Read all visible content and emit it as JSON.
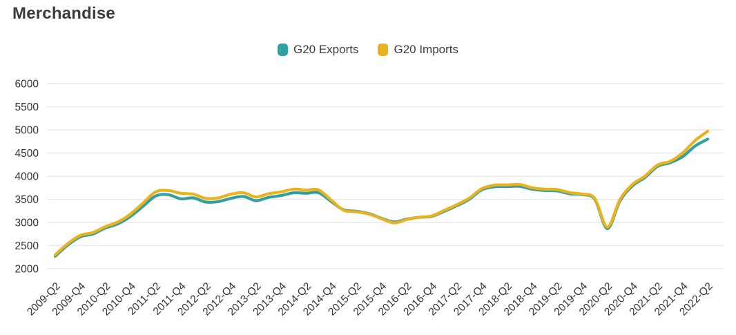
{
  "header": {
    "title": "Merchandise"
  },
  "legend": {
    "items": [
      {
        "label": "G20 Exports",
        "color": "#339f9f"
      },
      {
        "label": "G20 Imports",
        "color": "#e9b31d"
      }
    ]
  },
  "chart_data": {
    "type": "line",
    "title": "Merchandise",
    "categories": [
      "2009-Q2",
      "2009-Q3",
      "2009-Q4",
      "2010-Q1",
      "2010-Q2",
      "2010-Q3",
      "2010-Q4",
      "2011-Q1",
      "2011-Q2",
      "2011-Q3",
      "2011-Q4",
      "2012-Q1",
      "2012-Q2",
      "2012-Q3",
      "2012-Q4",
      "2013-Q1",
      "2013-Q2",
      "2013-Q3",
      "2013-Q4",
      "2014-Q1",
      "2014-Q2",
      "2014-Q3",
      "2014-Q4",
      "2015-Q1",
      "2015-Q2",
      "2015-Q3",
      "2015-Q4",
      "2016-Q1",
      "2016-Q2",
      "2016-Q3",
      "2016-Q4",
      "2017-Q1",
      "2017-Q2",
      "2017-Q3",
      "2017-Q4",
      "2018-Q1",
      "2018-Q2",
      "2018-Q3",
      "2018-Q4",
      "2019-Q1",
      "2019-Q2",
      "2019-Q3",
      "2019-Q4",
      "2020-Q1",
      "2020-Q2",
      "2020-Q3",
      "2020-Q4",
      "2021-Q1",
      "2021-Q2",
      "2021-Q3",
      "2021-Q4",
      "2022-Q1",
      "2022-Q2"
    ],
    "series": [
      {
        "name": "G20 Exports",
        "color": "#339f9f",
        "values": [
          2270,
          2510,
          2690,
          2750,
          2880,
          2970,
          3130,
          3350,
          3570,
          3600,
          3510,
          3530,
          3440,
          3450,
          3520,
          3560,
          3470,
          3540,
          3580,
          3640,
          3630,
          3640,
          3450,
          3270,
          3240,
          3190,
          3090,
          3010,
          3070,
          3110,
          3130,
          3240,
          3360,
          3500,
          3705,
          3770,
          3775,
          3780,
          3720,
          3690,
          3680,
          3620,
          3600,
          3500,
          2865,
          3460,
          3790,
          3970,
          4210,
          4290,
          4420,
          4650,
          4800
        ]
      },
      {
        "name": "G20 Imports",
        "color": "#e9b31d",
        "values": [
          2300,
          2540,
          2720,
          2780,
          2910,
          3010,
          3180,
          3420,
          3660,
          3690,
          3630,
          3610,
          3520,
          3530,
          3610,
          3640,
          3550,
          3620,
          3660,
          3720,
          3700,
          3700,
          3480,
          3260,
          3230,
          3180,
          3080,
          2990,
          3060,
          3110,
          3140,
          3260,
          3380,
          3525,
          3730,
          3805,
          3810,
          3820,
          3750,
          3720,
          3710,
          3645,
          3610,
          3520,
          2900,
          3490,
          3820,
          4000,
          4240,
          4320,
          4500,
          4770,
          4970
        ]
      }
    ],
    "ylim": [
      2000,
      6000
    ],
    "ytick_step": 500,
    "ytick_labels": [
      "2000",
      "2500",
      "3000",
      "3500",
      "4000",
      "4500",
      "5000",
      "5500",
      "6000"
    ],
    "xtick_every": 2,
    "grid": true,
    "grid_color": "#e9e9e9",
    "axis_text_color": "#333333",
    "legend_position": "top-center",
    "x_label_rotation": -45
  }
}
